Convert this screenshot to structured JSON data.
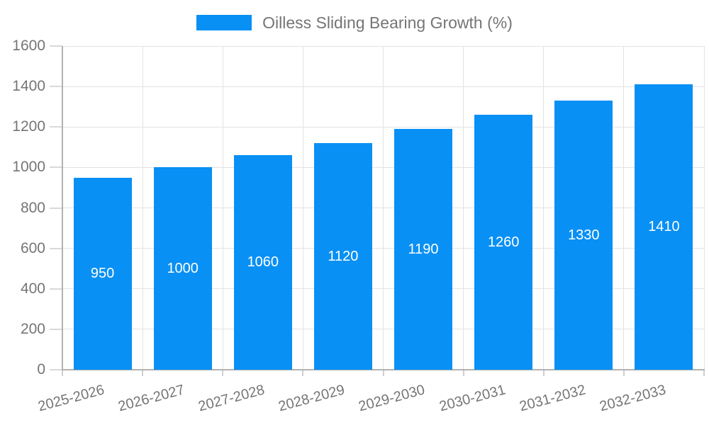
{
  "chart_data": {
    "type": "bar",
    "title": "",
    "legend": {
      "position": "top",
      "label": "Oilless Sliding Bearing Growth (%)"
    },
    "categories": [
      "2025-2026",
      "2026-2027",
      "2027-2028",
      "2028-2029",
      "2029-2030",
      "2030-2031",
      "2031-2032",
      "2032-2033"
    ],
    "series": [
      {
        "name": "Oilless Sliding Bearing Growth (%)",
        "color": "#0990f4",
        "values": [
          950,
          1000,
          1060,
          1120,
          1190,
          1260,
          1330,
          1410
        ]
      }
    ],
    "value_labels": {
      "visible": true,
      "position": "center-of-bar",
      "color": "#ffffff"
    },
    "xlabel": "",
    "ylabel": "",
    "yaxis": {
      "min": 0,
      "max": 1600,
      "tick_step": 200,
      "ticks": [
        0,
        200,
        400,
        600,
        800,
        1000,
        1200,
        1400,
        1600
      ],
      "label_color": "#757575"
    },
    "xaxis": {
      "label_rotation_deg": -15,
      "label_color": "#757575"
    },
    "grid": {
      "horizontal": true,
      "vertical": true,
      "color": "#e3e3e3"
    },
    "axis_line_color": "#b2b2b2",
    "background_color": "#ffffff"
  }
}
